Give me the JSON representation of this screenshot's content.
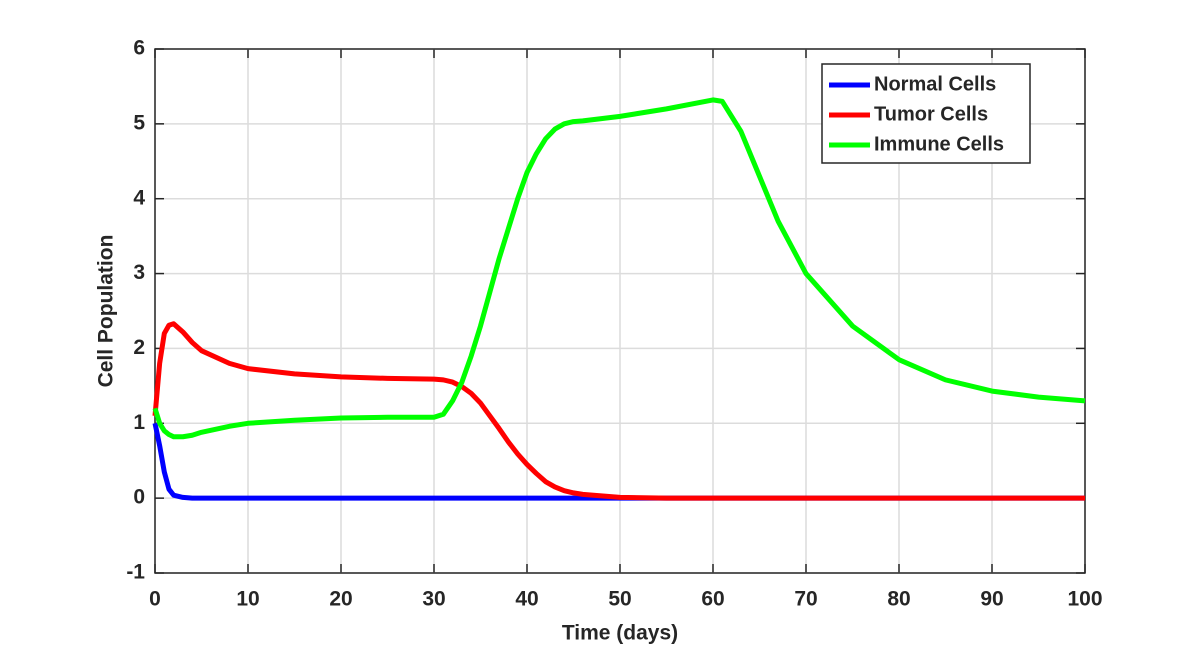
{
  "chart_data": {
    "type": "line",
    "xlabel": "Time (days)",
    "ylabel": "Cell Population",
    "x": [
      0,
      0.5,
      1,
      1.5,
      2,
      3,
      4,
      5,
      8,
      10,
      15,
      20,
      25,
      30,
      31,
      32,
      33,
      34,
      35,
      36,
      37,
      38,
      39,
      40,
      41,
      42,
      43,
      44,
      45,
      46,
      50,
      55,
      60,
      61,
      63,
      65,
      67,
      70,
      75,
      80,
      85,
      90,
      95,
      100
    ],
    "series": [
      {
        "name": "Normal Cells",
        "color": "#0000ff",
        "values": [
          1.0,
          0.7,
          0.35,
          0.12,
          0.04,
          0.01,
          0,
          0,
          0,
          0,
          0,
          0,
          0,
          0,
          0,
          0,
          0,
          0,
          0,
          0,
          0,
          0,
          0,
          0,
          0,
          0,
          0,
          0,
          0,
          0,
          0,
          0,
          0,
          0,
          0,
          0,
          0,
          0,
          0,
          0,
          0,
          0,
          0,
          0
        ]
      },
      {
        "name": "Tumor Cells",
        "color": "#ff0000",
        "values": [
          1.1,
          1.8,
          2.2,
          2.31,
          2.33,
          2.22,
          2.08,
          1.97,
          1.8,
          1.73,
          1.66,
          1.62,
          1.6,
          1.59,
          1.58,
          1.55,
          1.49,
          1.4,
          1.27,
          1.1,
          0.93,
          0.75,
          0.59,
          0.45,
          0.33,
          0.22,
          0.15,
          0.1,
          0.07,
          0.05,
          0.01,
          0,
          0,
          0,
          0,
          0,
          0,
          0,
          0,
          0,
          0,
          0,
          0,
          0
        ]
      },
      {
        "name": "Immune Cells",
        "color": "#00ff00",
        "values": [
          1.2,
          1.0,
          0.9,
          0.85,
          0.82,
          0.82,
          0.84,
          0.88,
          0.96,
          1.0,
          1.04,
          1.07,
          1.08,
          1.08,
          1.12,
          1.3,
          1.55,
          1.9,
          2.3,
          2.75,
          3.2,
          3.6,
          4.0,
          4.35,
          4.6,
          4.8,
          4.93,
          5.0,
          5.03,
          5.04,
          5.1,
          5.2,
          5.32,
          5.3,
          4.9,
          4.3,
          3.7,
          3.0,
          2.3,
          1.85,
          1.58,
          1.43,
          1.35,
          1.3
        ]
      }
    ],
    "xlim": [
      0,
      100
    ],
    "xticks": [
      0,
      10,
      20,
      30,
      40,
      50,
      60,
      70,
      80,
      90,
      100
    ],
    "ylim": [
      -1,
      6
    ],
    "yticks": [
      -1,
      0,
      1,
      2,
      3,
      4,
      5,
      6
    ],
    "grid": true,
    "legend": "upper right"
  }
}
